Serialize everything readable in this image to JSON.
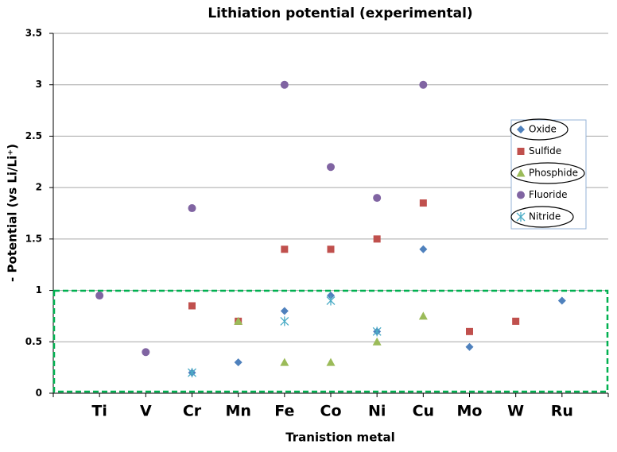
{
  "chart_data": {
    "type": "scatter",
    "title": "Lithiation potential (experimental)",
    "x_label": "Tranistion metal",
    "y_label": "- Potential (vs Li/Li⁺)",
    "categories": [
      "Ti",
      "V",
      "Cr",
      "Mn",
      "Fe",
      "Co",
      "Ni",
      "Cu",
      "Mo",
      "W",
      "Ru"
    ],
    "ylim": [
      0,
      3.5
    ],
    "yticks": [
      0,
      0.5,
      1,
      1.5,
      2,
      2.5,
      3,
      3.5
    ],
    "grid": true,
    "series": [
      {
        "name": "Oxide",
        "color": "#4f81bd",
        "marker": "diamond",
        "values": [
          0.95,
          null,
          0.2,
          0.3,
          0.8,
          0.95,
          0.6,
          1.4,
          0.45,
          null,
          0.9
        ]
      },
      {
        "name": "Sulfide",
        "color": "#c0504d",
        "marker": "square",
        "values": [
          null,
          null,
          0.85,
          0.7,
          1.4,
          1.4,
          1.5,
          1.85,
          0.6,
          0.7,
          null
        ]
      },
      {
        "name": "Phosphide",
        "color": "#9bbb59",
        "marker": "triangle",
        "values": [
          null,
          null,
          null,
          0.7,
          0.3,
          0.3,
          0.5,
          0.75,
          null,
          null,
          null
        ]
      },
      {
        "name": "Fluoride",
        "color": "#8064a2",
        "marker": "circle",
        "values": [
          0.95,
          0.4,
          1.8,
          null,
          3.0,
          2.2,
          1.9,
          3.0,
          null,
          null,
          null
        ]
      },
      {
        "name": "Nitride",
        "color": "#4bacc6",
        "marker": "star",
        "values": [
          null,
          null,
          0.2,
          null,
          0.7,
          0.9,
          0.6,
          null,
          null,
          null,
          null
        ]
      }
    ]
  }
}
